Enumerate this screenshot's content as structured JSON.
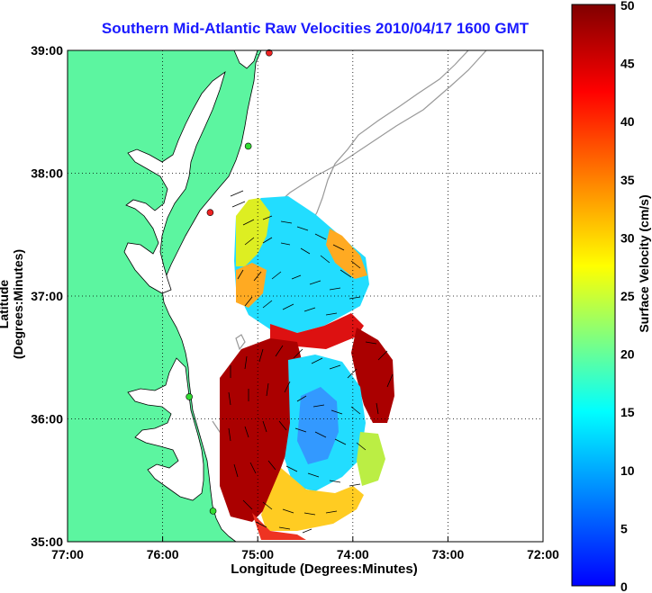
{
  "title": "Southern Mid-Atlantic Raw Velocities 2010/04/17 1600 GMT",
  "axes": {
    "xlabel": "Longitude (Degrees:Minutes)",
    "ylabel": "Latitude (Degrees:Minutes)",
    "x_ticks": [
      "77:00",
      "76:00",
      "75:00",
      "74:00",
      "73:00",
      "72:00"
    ],
    "y_ticks": [
      "39:00",
      "38:00",
      "37:00",
      "36:00",
      "35:00"
    ]
  },
  "colorbar": {
    "label": "Surface Velocity (cm/s)",
    "ticks": [
      "50",
      "45",
      "40",
      "35",
      "30",
      "25",
      "20",
      "15",
      "10",
      "5",
      "0"
    ],
    "range": [
      0,
      50
    ],
    "colors": [
      "#0000ff",
      "#00ffff",
      "#ffff00",
      "#ff8000",
      "#ff0000",
      "#800000"
    ]
  },
  "chart_data": {
    "type": "heatmap",
    "title": "Southern Mid-Atlantic Raw Velocities 2010/04/17 1600 GMT",
    "xlabel": "Longitude (Degrees:Minutes)",
    "ylabel": "Latitude (Degrees:Minutes)",
    "xlim": [
      -77,
      -72
    ],
    "ylim": [
      35,
      39
    ],
    "color_scale": {
      "min": 0,
      "max": 50,
      "unit": "cm/s"
    },
    "grid": true,
    "colors": {
      "land": "#5cf5a0",
      "coastline": "#000000",
      "bathymetry": "#999999",
      "grid": "#000000",
      "stations_green": "#33dd33",
      "stations_red": "#ee2222"
    },
    "stations": [
      {
        "lon": -74.88,
        "lat": 38.98,
        "color": "red"
      },
      {
        "lon": -75.1,
        "lat": 38.22,
        "color": "green"
      },
      {
        "lon": -75.5,
        "lat": 37.68,
        "color": "red"
      },
      {
        "lon": -75.72,
        "lat": 36.18,
        "color": "green"
      },
      {
        "lon": -75.47,
        "lat": 35.25,
        "color": "green"
      }
    ]
  }
}
